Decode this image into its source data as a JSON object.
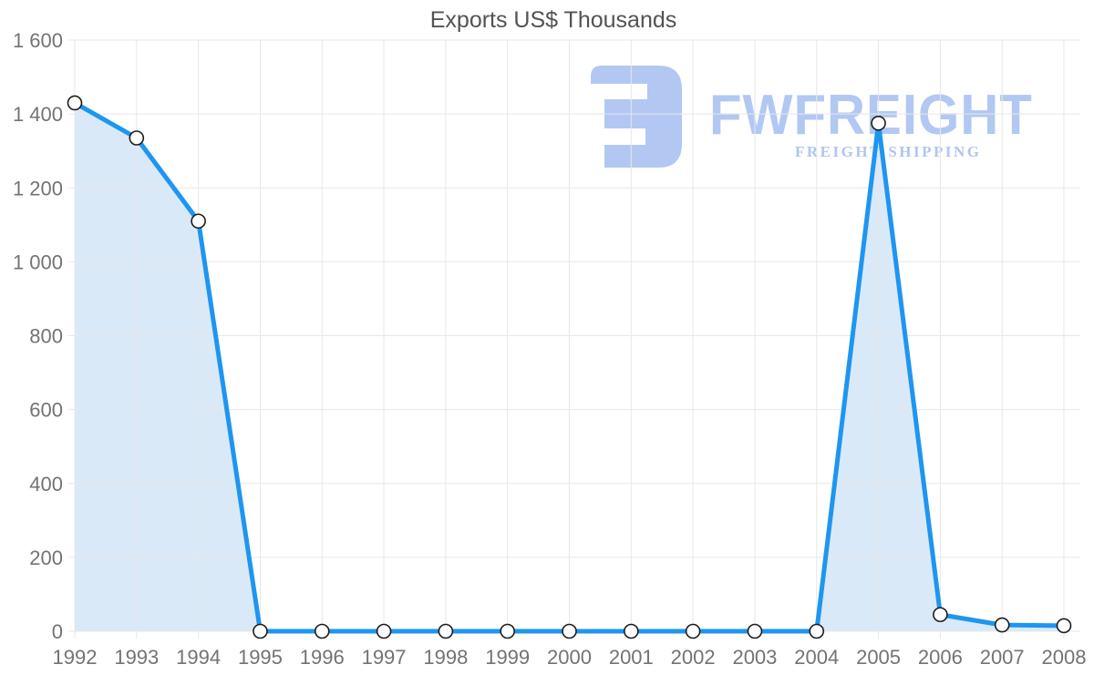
{
  "page": {
    "background": "#ffffff"
  },
  "chart_data": {
    "type": "area",
    "title": "Exports US$ Thousands",
    "xlabel": "",
    "ylabel": "",
    "x": [
      1992,
      1993,
      1994,
      1995,
      1996,
      1997,
      1998,
      1999,
      2000,
      2001,
      2002,
      2003,
      2004,
      2005,
      2006,
      2007,
      2008
    ],
    "series": [
      {
        "name": "Exports US$ Thousands",
        "values": [
          1430,
          1335,
          1110,
          0,
          0,
          0,
          0,
          0,
          0,
          0,
          0,
          0,
          0,
          1375,
          45,
          17,
          15
        ]
      }
    ],
    "ylim": [
      0,
      1600
    ],
    "yticks": [
      0,
      200,
      400,
      600,
      800,
      1000,
      1200,
      1400,
      1600
    ],
    "ytick_labels": [
      "0",
      "200",
      "400",
      "600",
      "800",
      "1 000",
      "1 200",
      "1 400",
      "1 600"
    ],
    "grid": true,
    "legend": "none",
    "markers": "circle",
    "colors": {
      "line": "#1e96f0",
      "area_fill": "rgba(25,118,210,0.16)",
      "marker_fill": "#ffffff",
      "marker_stroke": "#1c1c1c",
      "grid": "#e7e7e7",
      "axis_text": "#737373",
      "title_text": "#535353"
    }
  },
  "watermark": {
    "brand": "FWFREIGHT",
    "tagline": "FREIGHT SHIPPING",
    "logo_icon": "fwfreight-monogram-icon",
    "color": "#b2c8f2"
  }
}
